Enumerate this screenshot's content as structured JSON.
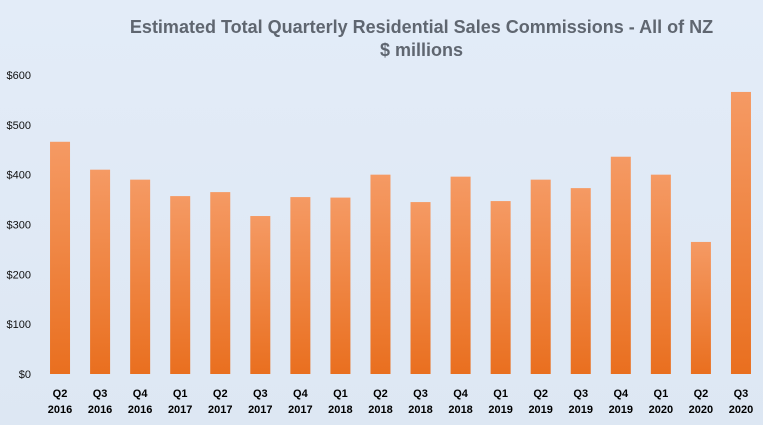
{
  "chart_data": {
    "type": "bar",
    "title": "Estimated Total Quarterly Residential Sales Commissions - All of NZ",
    "subtitle": "$ millions",
    "categories": [
      [
        "Q2",
        "2016"
      ],
      [
        "Q3",
        "2016"
      ],
      [
        "Q4",
        "2016"
      ],
      [
        "Q1",
        "2017"
      ],
      [
        "Q2",
        "2017"
      ],
      [
        "Q3",
        "2017"
      ],
      [
        "Q4",
        "2017"
      ],
      [
        "Q1",
        "2018"
      ],
      [
        "Q2",
        "2018"
      ],
      [
        "Q3",
        "2018"
      ],
      [
        "Q4",
        "2018"
      ],
      [
        "Q1",
        "2019"
      ],
      [
        "Q2",
        "2019"
      ],
      [
        "Q3",
        "2019"
      ],
      [
        "Q4",
        "2019"
      ],
      [
        "Q1",
        "2020"
      ],
      [
        "Q2",
        "2020"
      ],
      [
        "Q3",
        "2020"
      ]
    ],
    "values": [
      466,
      410,
      390,
      357,
      365,
      317,
      355,
      354,
      400,
      345,
      396,
      347,
      390,
      373,
      436,
      400,
      265,
      566
    ],
    "ylim": [
      0,
      600
    ],
    "y_ticks": [
      0,
      100,
      200,
      300,
      400,
      500,
      600
    ],
    "y_tick_labels": [
      "$0",
      "$100",
      "$200",
      "$300",
      "$400",
      "$500",
      "$600"
    ],
    "grid": false,
    "legend": "none",
    "colors": {
      "bar_top": "#f59a64",
      "bar_bottom": "#e96f1f",
      "title": "#5f6670",
      "background": "#dfe9f6"
    }
  }
}
